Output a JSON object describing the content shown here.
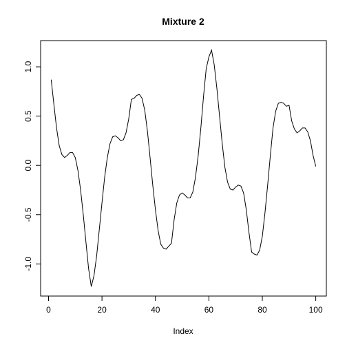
{
  "chart_data": {
    "type": "line",
    "title": "Mixture 2",
    "x_label": "Index",
    "x": [
      1,
      2,
      3,
      4,
      5,
      6,
      7,
      8,
      9,
      10,
      11,
      12,
      13,
      14,
      15,
      16,
      17,
      18,
      19,
      20,
      21,
      22,
      23,
      24,
      25,
      26,
      27,
      28,
      29,
      30,
      31,
      32,
      33,
      34,
      35,
      36,
      37,
      38,
      39,
      40,
      41,
      42,
      43,
      44,
      45,
      46,
      47,
      48,
      49,
      50,
      51,
      52,
      53,
      54,
      55,
      56,
      57,
      58,
      59,
      60,
      61,
      62,
      63,
      64,
      65,
      66,
      67,
      68,
      69,
      70,
      71,
      72,
      73,
      74,
      75,
      76,
      77,
      78,
      79,
      80,
      81,
      82,
      83,
      84,
      85,
      86,
      87,
      88,
      89,
      90,
      91,
      92,
      93,
      94,
      95,
      96,
      97,
      98,
      99,
      100
    ],
    "values": [
      0.87,
      0.62,
      0.38,
      0.2,
      0.11,
      0.08,
      0.1,
      0.13,
      0.13,
      0.08,
      -0.05,
      -0.25,
      -0.5,
      -0.78,
      -1.05,
      -1.23,
      -1.12,
      -0.92,
      -0.65,
      -0.38,
      -0.12,
      0.08,
      0.22,
      0.29,
      0.3,
      0.28,
      0.25,
      0.26,
      0.33,
      0.47,
      0.67,
      0.68,
      0.71,
      0.72,
      0.68,
      0.56,
      0.35,
      0.08,
      -0.2,
      -0.45,
      -0.66,
      -0.8,
      -0.84,
      -0.85,
      -0.82,
      -0.79,
      -0.55,
      -0.38,
      -0.3,
      -0.28,
      -0.3,
      -0.33,
      -0.33,
      -0.27,
      -0.12,
      0.1,
      0.38,
      0.7,
      0.98,
      1.1,
      1.17,
      1.02,
      0.78,
      0.5,
      0.22,
      -0.02,
      -0.17,
      -0.24,
      -0.25,
      -0.22,
      -0.2,
      -0.21,
      -0.28,
      -0.45,
      -0.68,
      -0.88,
      -0.9,
      -0.91,
      -0.86,
      -0.72,
      -0.48,
      -0.2,
      0.1,
      0.38,
      0.55,
      0.63,
      0.64,
      0.63,
      0.6,
      0.61,
      0.45,
      0.37,
      0.33,
      0.35,
      0.38,
      0.38,
      0.34,
      0.25,
      0.1,
      -0.01
    ],
    "color": "#000000",
    "xlim": [
      -2.96,
      103.96
    ],
    "xticks": [
      0,
      20,
      40,
      60,
      80,
      100
    ],
    "ylim": [
      -1.326,
      1.266
    ],
    "yticks": [
      {
        "value": -1.0,
        "label": "-1.0"
      },
      -0.5,
      {
        "value": 0.0,
        "label": "0.0"
      },
      0.5,
      {
        "value": 1.0,
        "label": "1.0"
      }
    ]
  }
}
